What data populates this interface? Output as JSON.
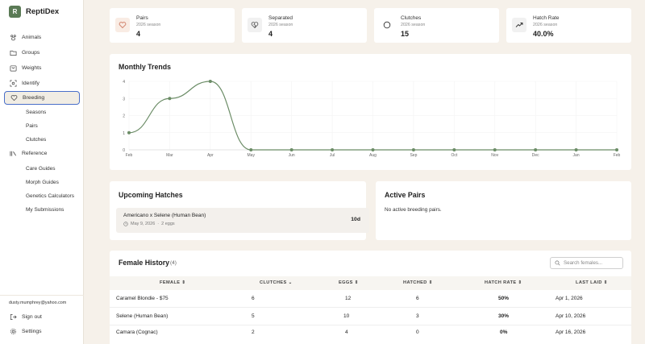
{
  "app": {
    "logo_letter": "R",
    "name": "ReptiDex"
  },
  "sidebar": {
    "items": [
      {
        "label": "Animals",
        "icon": "paw-icon"
      },
      {
        "label": "Groups",
        "icon": "folder-icon"
      },
      {
        "label": "Weights",
        "icon": "scale-icon"
      },
      {
        "label": "Identify",
        "icon": "scan-icon"
      },
      {
        "label": "Breeding",
        "icon": "heart-icon"
      }
    ],
    "breeding_sub": [
      "Seasons",
      "Pairs",
      "Clutches"
    ],
    "reference_label": "Reference",
    "reference_sub": [
      "Care Guides",
      "Morph Guides",
      "Genetics Calculators",
      "My Submissions"
    ],
    "user_email": "dusty.mumphrey@yahoo.com",
    "sign_out": "Sign out",
    "settings": "Settings"
  },
  "stats": [
    {
      "label": "Pairs",
      "sub": "2026 season",
      "value": "4",
      "icon": "heart-icon"
    },
    {
      "label": "Separated",
      "sub": "2026 season",
      "value": "4",
      "icon": "broken-heart-icon"
    },
    {
      "label": "Clutches",
      "sub": "2026 season",
      "value": "15",
      "icon": "egg-icon"
    },
    {
      "label": "Hatch Rate",
      "sub": "2026 season",
      "value": "40.0%",
      "icon": "trend-up-icon"
    }
  ],
  "trends": {
    "title": "Monthly Trends",
    "chart_data": {
      "type": "line",
      "categories": [
        "Feb",
        "Mar",
        "Apr",
        "May",
        "Jun",
        "Jul",
        "Aug",
        "Sep",
        "Oct",
        "Nov",
        "Dec",
        "Jan",
        "Feb"
      ],
      "values": [
        1,
        3,
        4,
        0,
        0,
        0,
        0,
        0,
        0,
        0,
        0,
        0,
        0
      ],
      "y_ticks": [
        "0",
        "1",
        "2",
        "3",
        "4"
      ],
      "ylim": [
        0,
        4
      ],
      "color": "#6b8c66"
    }
  },
  "upcoming": {
    "title": "Upcoming Hatches",
    "items": [
      {
        "pair": "Americano x Selene (Human Bean)",
        "date": "May 9, 2026",
        "eggs": "2 eggs",
        "days": "10d"
      }
    ]
  },
  "active_pairs": {
    "title": "Active Pairs",
    "empty": "No active breeding pairs."
  },
  "female_history": {
    "title": "Female History",
    "count": "(4)",
    "search_placeholder": "Search females...",
    "columns": [
      "FEMALE",
      "CLUTCHES",
      "EGGS",
      "HATCHED",
      "HATCH RATE",
      "LAST LAID"
    ],
    "rows": [
      [
        "Caramel Blondie - $75",
        "6",
        "12",
        "6",
        "50%",
        "Apr 1, 2026"
      ],
      [
        "Selene (Human Bean)",
        "5",
        "10",
        "3",
        "30%",
        "Apr 10, 2026"
      ],
      [
        "Camara (Cognac)",
        "2",
        "4",
        "0",
        "0%",
        "Apr 16, 2026"
      ]
    ]
  }
}
